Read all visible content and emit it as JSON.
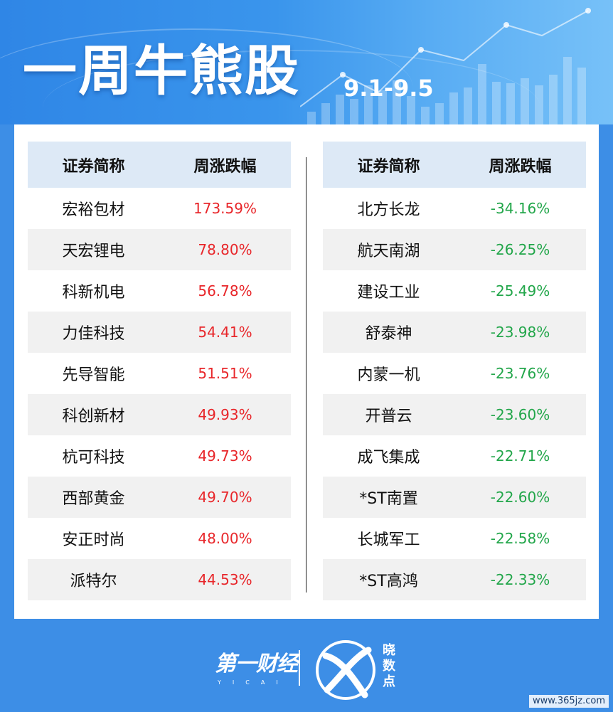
{
  "header": {
    "title": "一周牛熊股",
    "date_range": "9.1-9.5"
  },
  "columns": {
    "name": "证券简称",
    "change": "周涨跌幅"
  },
  "bull_stocks": [
    {
      "name": "宏裕包材",
      "change": "173.59%"
    },
    {
      "name": "天宏锂电",
      "change": "78.80%"
    },
    {
      "name": "科新机电",
      "change": "56.78%"
    },
    {
      "name": "力佳科技",
      "change": "54.41%"
    },
    {
      "name": "先导智能",
      "change": "51.51%"
    },
    {
      "name": "科创新材",
      "change": "49.93%"
    },
    {
      "name": "杭可科技",
      "change": "49.73%"
    },
    {
      "name": "西部黄金",
      "change": "49.70%"
    },
    {
      "name": "安正时尚",
      "change": "48.00%"
    },
    {
      "name": "派特尔",
      "change": "44.53%"
    }
  ],
  "bear_stocks": [
    {
      "name": "北方长龙",
      "change": "-34.16%"
    },
    {
      "name": "航天南湖",
      "change": "-26.25%"
    },
    {
      "name": "建设工业",
      "change": "-25.49%"
    },
    {
      "name": "舒泰神",
      "change": "-23.98%"
    },
    {
      "name": "内蒙一机",
      "change": "-23.76%"
    },
    {
      "name": "开普云",
      "change": "-23.60%"
    },
    {
      "name": "成飞集成",
      "change": "-22.71%"
    },
    {
      "name": "*ST南置",
      "change": "-22.60%"
    },
    {
      "name": "长城军工",
      "change": "-22.58%"
    },
    {
      "name": "*ST高鸿",
      "change": "-22.33%"
    }
  ],
  "footer": {
    "brand": "第一财经",
    "brand_sub": "YICAI",
    "logo_text": "晓数点",
    "logo_icon": "xiaoshudian-logo-icon",
    "watermark": "www.365jz.com"
  },
  "colors": {
    "up": "#e8262a",
    "down": "#22a64a",
    "header_row": "#dde9f6",
    "background": "#3d8ee6"
  }
}
